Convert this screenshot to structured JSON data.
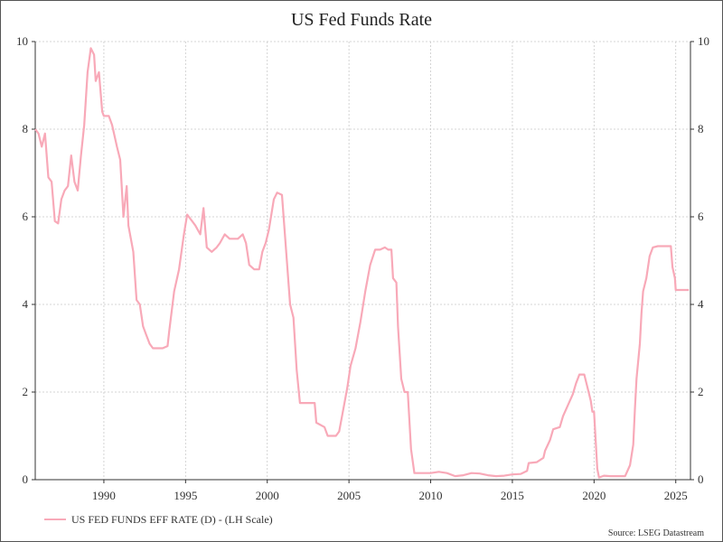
{
  "chart_data": {
    "type": "line",
    "title": "US Fed Funds Rate",
    "xlim": [
      1985.8,
      2025.9
    ],
    "ylim": [
      0,
      10
    ],
    "y_ticks": [
      0,
      2,
      4,
      6,
      8,
      10
    ],
    "x_ticks": [
      1990,
      1995,
      2000,
      2005,
      2010,
      2015,
      2020,
      2025
    ],
    "grid": true,
    "legend_position": "bottom-left",
    "source": "Source: LSEG Datastream",
    "series": [
      {
        "name": "US FED FUNDS EFF RATE (D) - (LH Scale)",
        "color": "#f8a9b8",
        "points": [
          [
            1985.8,
            8.0
          ],
          [
            1986.0,
            7.9
          ],
          [
            1986.2,
            7.6
          ],
          [
            1986.4,
            7.9
          ],
          [
            1986.6,
            6.9
          ],
          [
            1986.8,
            6.8
          ],
          [
            1987.0,
            5.9
          ],
          [
            1987.2,
            5.85
          ],
          [
            1987.4,
            6.4
          ],
          [
            1987.6,
            6.6
          ],
          [
            1987.8,
            6.7
          ],
          [
            1988.0,
            7.4
          ],
          [
            1988.2,
            6.8
          ],
          [
            1988.4,
            6.6
          ],
          [
            1988.6,
            7.4
          ],
          [
            1988.8,
            8.1
          ],
          [
            1989.0,
            9.3
          ],
          [
            1989.2,
            9.85
          ],
          [
            1989.4,
            9.7
          ],
          [
            1989.5,
            9.1
          ],
          [
            1989.7,
            9.3
          ],
          [
            1989.9,
            8.4
          ],
          [
            1990.0,
            8.3
          ],
          [
            1990.3,
            8.3
          ],
          [
            1990.5,
            8.1
          ],
          [
            1990.8,
            7.6
          ],
          [
            1991.0,
            7.3
          ],
          [
            1991.2,
            6.0
          ],
          [
            1991.4,
            6.7
          ],
          [
            1991.5,
            5.8
          ],
          [
            1991.8,
            5.2
          ],
          [
            1992.0,
            4.1
          ],
          [
            1992.2,
            4.0
          ],
          [
            1992.4,
            3.5
          ],
          [
            1992.6,
            3.3
          ],
          [
            1992.8,
            3.1
          ],
          [
            1993.0,
            3.0
          ],
          [
            1993.3,
            3.0
          ],
          [
            1993.6,
            3.0
          ],
          [
            1993.9,
            3.05
          ],
          [
            1994.0,
            3.4
          ],
          [
            1994.3,
            4.3
          ],
          [
            1994.6,
            4.8
          ],
          [
            1994.9,
            5.6
          ],
          [
            1995.1,
            6.05
          ],
          [
            1995.4,
            5.9
          ],
          [
            1995.6,
            5.8
          ],
          [
            1995.9,
            5.6
          ],
          [
            1996.1,
            6.2
          ],
          [
            1996.3,
            5.3
          ],
          [
            1996.6,
            5.2
          ],
          [
            1996.9,
            5.3
          ],
          [
            1997.1,
            5.4
          ],
          [
            1997.4,
            5.6
          ],
          [
            1997.7,
            5.5
          ],
          [
            1997.9,
            5.5
          ],
          [
            1998.2,
            5.5
          ],
          [
            1998.5,
            5.6
          ],
          [
            1998.7,
            5.4
          ],
          [
            1998.9,
            4.9
          ],
          [
            1999.2,
            4.8
          ],
          [
            1999.5,
            4.8
          ],
          [
            1999.7,
            5.2
          ],
          [
            1999.9,
            5.4
          ],
          [
            2000.1,
            5.7
          ],
          [
            2000.4,
            6.4
          ],
          [
            2000.6,
            6.55
          ],
          [
            2000.9,
            6.5
          ],
          [
            2001.0,
            6.0
          ],
          [
            2001.2,
            5.0
          ],
          [
            2001.4,
            4.0
          ],
          [
            2001.6,
            3.7
          ],
          [
            2001.8,
            2.5
          ],
          [
            2002.0,
            1.75
          ],
          [
            2002.3,
            1.75
          ],
          [
            2002.6,
            1.75
          ],
          [
            2002.9,
            1.75
          ],
          [
            2003.0,
            1.3
          ],
          [
            2003.5,
            1.2
          ],
          [
            2003.7,
            1.0
          ],
          [
            2004.0,
            1.0
          ],
          [
            2004.2,
            1.0
          ],
          [
            2004.4,
            1.1
          ],
          [
            2004.6,
            1.5
          ],
          [
            2004.9,
            2.1
          ],
          [
            2005.1,
            2.6
          ],
          [
            2005.4,
            3.0
          ],
          [
            2005.7,
            3.6
          ],
          [
            2006.0,
            4.3
          ],
          [
            2006.3,
            4.9
          ],
          [
            2006.6,
            5.25
          ],
          [
            2006.9,
            5.25
          ],
          [
            2007.2,
            5.3
          ],
          [
            2007.4,
            5.25
          ],
          [
            2007.6,
            5.25
          ],
          [
            2007.7,
            4.6
          ],
          [
            2007.9,
            4.5
          ],
          [
            2008.0,
            3.5
          ],
          [
            2008.2,
            2.3
          ],
          [
            2008.4,
            2.0
          ],
          [
            2008.6,
            2.0
          ],
          [
            2008.8,
            0.7
          ],
          [
            2009.0,
            0.15
          ],
          [
            2009.5,
            0.15
          ],
          [
            2010.0,
            0.15
          ],
          [
            2010.5,
            0.18
          ],
          [
            2011.0,
            0.15
          ],
          [
            2011.5,
            0.08
          ],
          [
            2012.0,
            0.1
          ],
          [
            2012.5,
            0.15
          ],
          [
            2013.0,
            0.14
          ],
          [
            2013.5,
            0.1
          ],
          [
            2014.0,
            0.08
          ],
          [
            2014.5,
            0.09
          ],
          [
            2015.0,
            0.12
          ],
          [
            2015.5,
            0.13
          ],
          [
            2015.9,
            0.2
          ],
          [
            2016.0,
            0.38
          ],
          [
            2016.5,
            0.4
          ],
          [
            2016.9,
            0.5
          ],
          [
            2017.0,
            0.66
          ],
          [
            2017.3,
            0.9
          ],
          [
            2017.5,
            1.15
          ],
          [
            2017.9,
            1.2
          ],
          [
            2018.1,
            1.45
          ],
          [
            2018.4,
            1.7
          ],
          [
            2018.7,
            1.95
          ],
          [
            2018.9,
            2.2
          ],
          [
            2019.1,
            2.4
          ],
          [
            2019.4,
            2.4
          ],
          [
            2019.6,
            2.1
          ],
          [
            2019.8,
            1.8
          ],
          [
            2019.9,
            1.55
          ],
          [
            2020.0,
            1.55
          ],
          [
            2020.2,
            0.25
          ],
          [
            2020.3,
            0.05
          ],
          [
            2020.6,
            0.09
          ],
          [
            2021.0,
            0.08
          ],
          [
            2021.5,
            0.08
          ],
          [
            2021.9,
            0.08
          ],
          [
            2022.2,
            0.33
          ],
          [
            2022.4,
            0.8
          ],
          [
            2022.5,
            1.6
          ],
          [
            2022.6,
            2.3
          ],
          [
            2022.8,
            3.1
          ],
          [
            2022.9,
            3.8
          ],
          [
            2023.0,
            4.3
          ],
          [
            2023.2,
            4.6
          ],
          [
            2023.4,
            5.1
          ],
          [
            2023.6,
            5.3
          ],
          [
            2023.9,
            5.33
          ],
          [
            2024.2,
            5.33
          ],
          [
            2024.5,
            5.33
          ],
          [
            2024.7,
            5.33
          ],
          [
            2024.8,
            4.85
          ],
          [
            2024.95,
            4.6
          ],
          [
            2025.0,
            4.33
          ],
          [
            2025.5,
            4.33
          ],
          [
            2025.8,
            4.33
          ]
        ]
      }
    ]
  }
}
